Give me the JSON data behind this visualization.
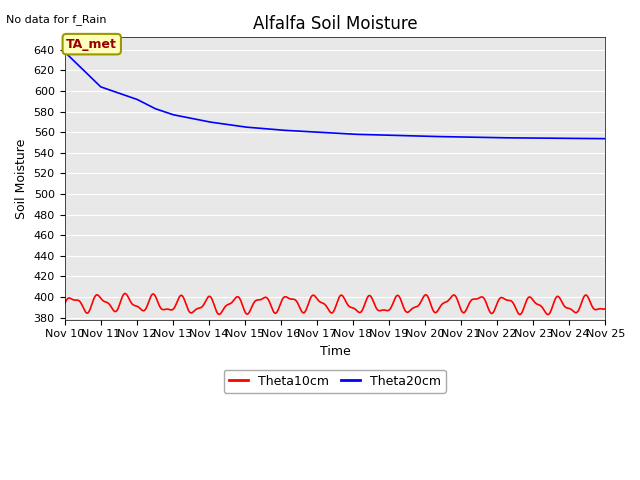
{
  "title": "Alfalfa Soil Moisture",
  "xlabel": "Time",
  "ylabel": "Soil Moisture",
  "top_left_text": "No data for f_Rain",
  "annotation_label": "TA_met",
  "ylim_min": 378,
  "ylim_max": 652,
  "xlim_min": 0,
  "xlim_max": 15,
  "yticks": [
    380,
    400,
    420,
    440,
    460,
    480,
    500,
    520,
    540,
    560,
    580,
    600,
    620,
    640
  ],
  "fig_facecolor": "#ffffff",
  "plot_facecolor": "#e8e8e8",
  "legend_entries": [
    "Theta10cm",
    "Theta20cm"
  ],
  "legend_colors": [
    "#ff0000",
    "#0000ff"
  ],
  "blue_line_color": "#0000ff",
  "red_line_color": "#ff0000",
  "grid_color": "#ffffff",
  "title_fontsize": 12,
  "axis_label_fontsize": 9,
  "tick_fontsize": 8,
  "annotation_facecolor": "#ffffbb",
  "annotation_edgecolor": "#999900",
  "annotation_textcolor": "#990000"
}
